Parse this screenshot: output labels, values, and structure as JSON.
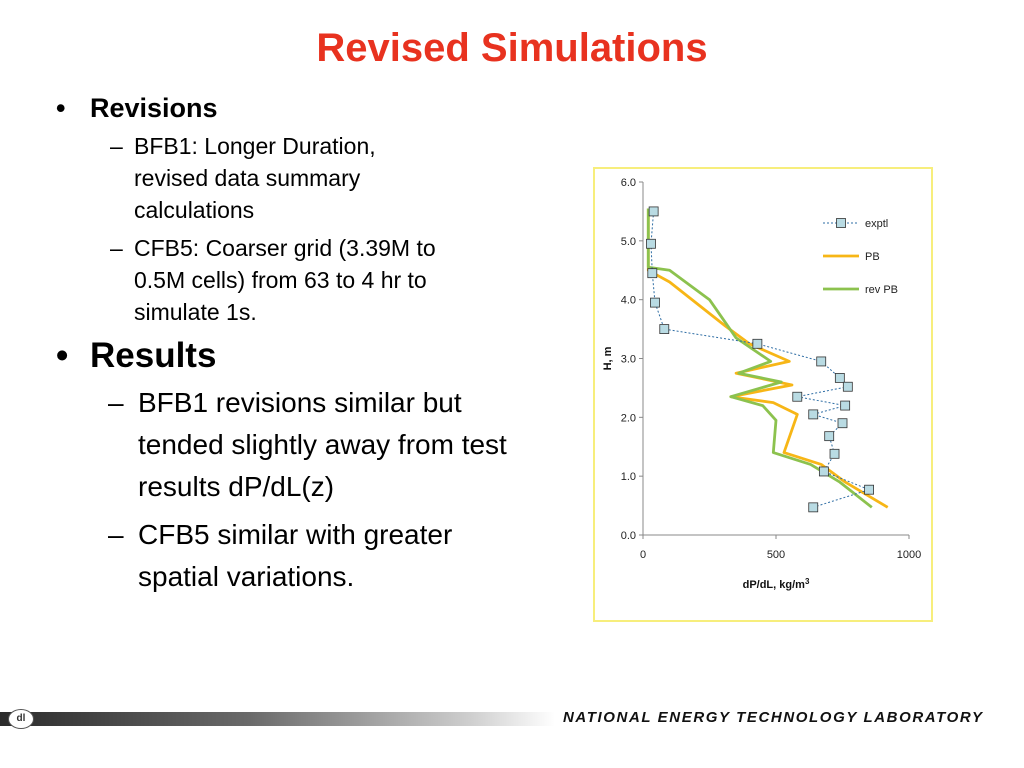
{
  "slide": {
    "title": "Revised Simulations",
    "revisions": {
      "heading": "Revisions",
      "items": [
        "BFB1: Longer Duration, revised data summary calculations",
        "CFB5: Coarser grid (3.39M to 0.5M cells) from 63 to 4 hr to simulate 1s."
      ]
    },
    "results": {
      "heading": "Results",
      "items": [
        "BFB1 revisions similar but tended slightly away from test results dP/dL(z)",
        "CFB5 similar with greater spatial variations."
      ]
    },
    "bullet_glyph": "•",
    "dash_glyph": "–",
    "footer": {
      "logo_glyph": "dl",
      "text": "NATIONAL ENERGY TECHNOLOGY LABORATORY"
    }
  },
  "chart_data": {
    "type": "line",
    "xlabel": "dP/dL, kg/m",
    "xlabel_sup": "3",
    "ylabel": "H, m",
    "xlim": [
      0,
      1000
    ],
    "ylim": [
      0,
      6
    ],
    "x_ticks": [
      "0",
      "500",
      "1000"
    ],
    "y_ticks": [
      "0.0",
      "1.0",
      "2.0",
      "3.0",
      "4.0",
      "5.0",
      "6.0"
    ],
    "legend_position": "right",
    "series": [
      {
        "name": "exptl",
        "color": "#2e6da4",
        "marker_fill": "#b9dbe3",
        "style": "dashed-marker",
        "points": [
          [
            40,
            5.5
          ],
          [
            30,
            4.95
          ],
          [
            35,
            4.45
          ],
          [
            45,
            3.95
          ],
          [
            80,
            3.5
          ],
          [
            430,
            3.25
          ],
          [
            670,
            2.95
          ],
          [
            740,
            2.67
          ],
          [
            770,
            2.52
          ],
          [
            580,
            2.35
          ],
          [
            760,
            2.2
          ],
          [
            640,
            2.05
          ],
          [
            750,
            1.9
          ],
          [
            700,
            1.68
          ],
          [
            720,
            1.38
          ],
          [
            680,
            1.08
          ],
          [
            850,
            0.77
          ],
          [
            640,
            0.47
          ]
        ]
      },
      {
        "name": "PB",
        "color": "#f7b616",
        "style": "line",
        "points": [
          [
            20,
            5.55
          ],
          [
            20,
            4.5
          ],
          [
            100,
            4.3
          ],
          [
            310,
            3.55
          ],
          [
            400,
            3.25
          ],
          [
            550,
            2.95
          ],
          [
            350,
            2.75
          ],
          [
            560,
            2.55
          ],
          [
            330,
            2.35
          ],
          [
            490,
            2.25
          ],
          [
            580,
            2.05
          ],
          [
            530,
            1.4
          ],
          [
            670,
            1.2
          ],
          [
            760,
            0.9
          ],
          [
            920,
            0.47
          ]
        ]
      },
      {
        "name": "rev PB",
        "color": "#8cc24e",
        "style": "line",
        "points": [
          [
            20,
            5.55
          ],
          [
            20,
            4.55
          ],
          [
            100,
            4.5
          ],
          [
            250,
            4.0
          ],
          [
            350,
            3.35
          ],
          [
            480,
            2.95
          ],
          [
            360,
            2.75
          ],
          [
            520,
            2.6
          ],
          [
            330,
            2.35
          ],
          [
            450,
            2.2
          ],
          [
            500,
            1.95
          ],
          [
            490,
            1.4
          ],
          [
            630,
            1.2
          ],
          [
            740,
            0.9
          ],
          [
            860,
            0.47
          ]
        ]
      }
    ]
  }
}
